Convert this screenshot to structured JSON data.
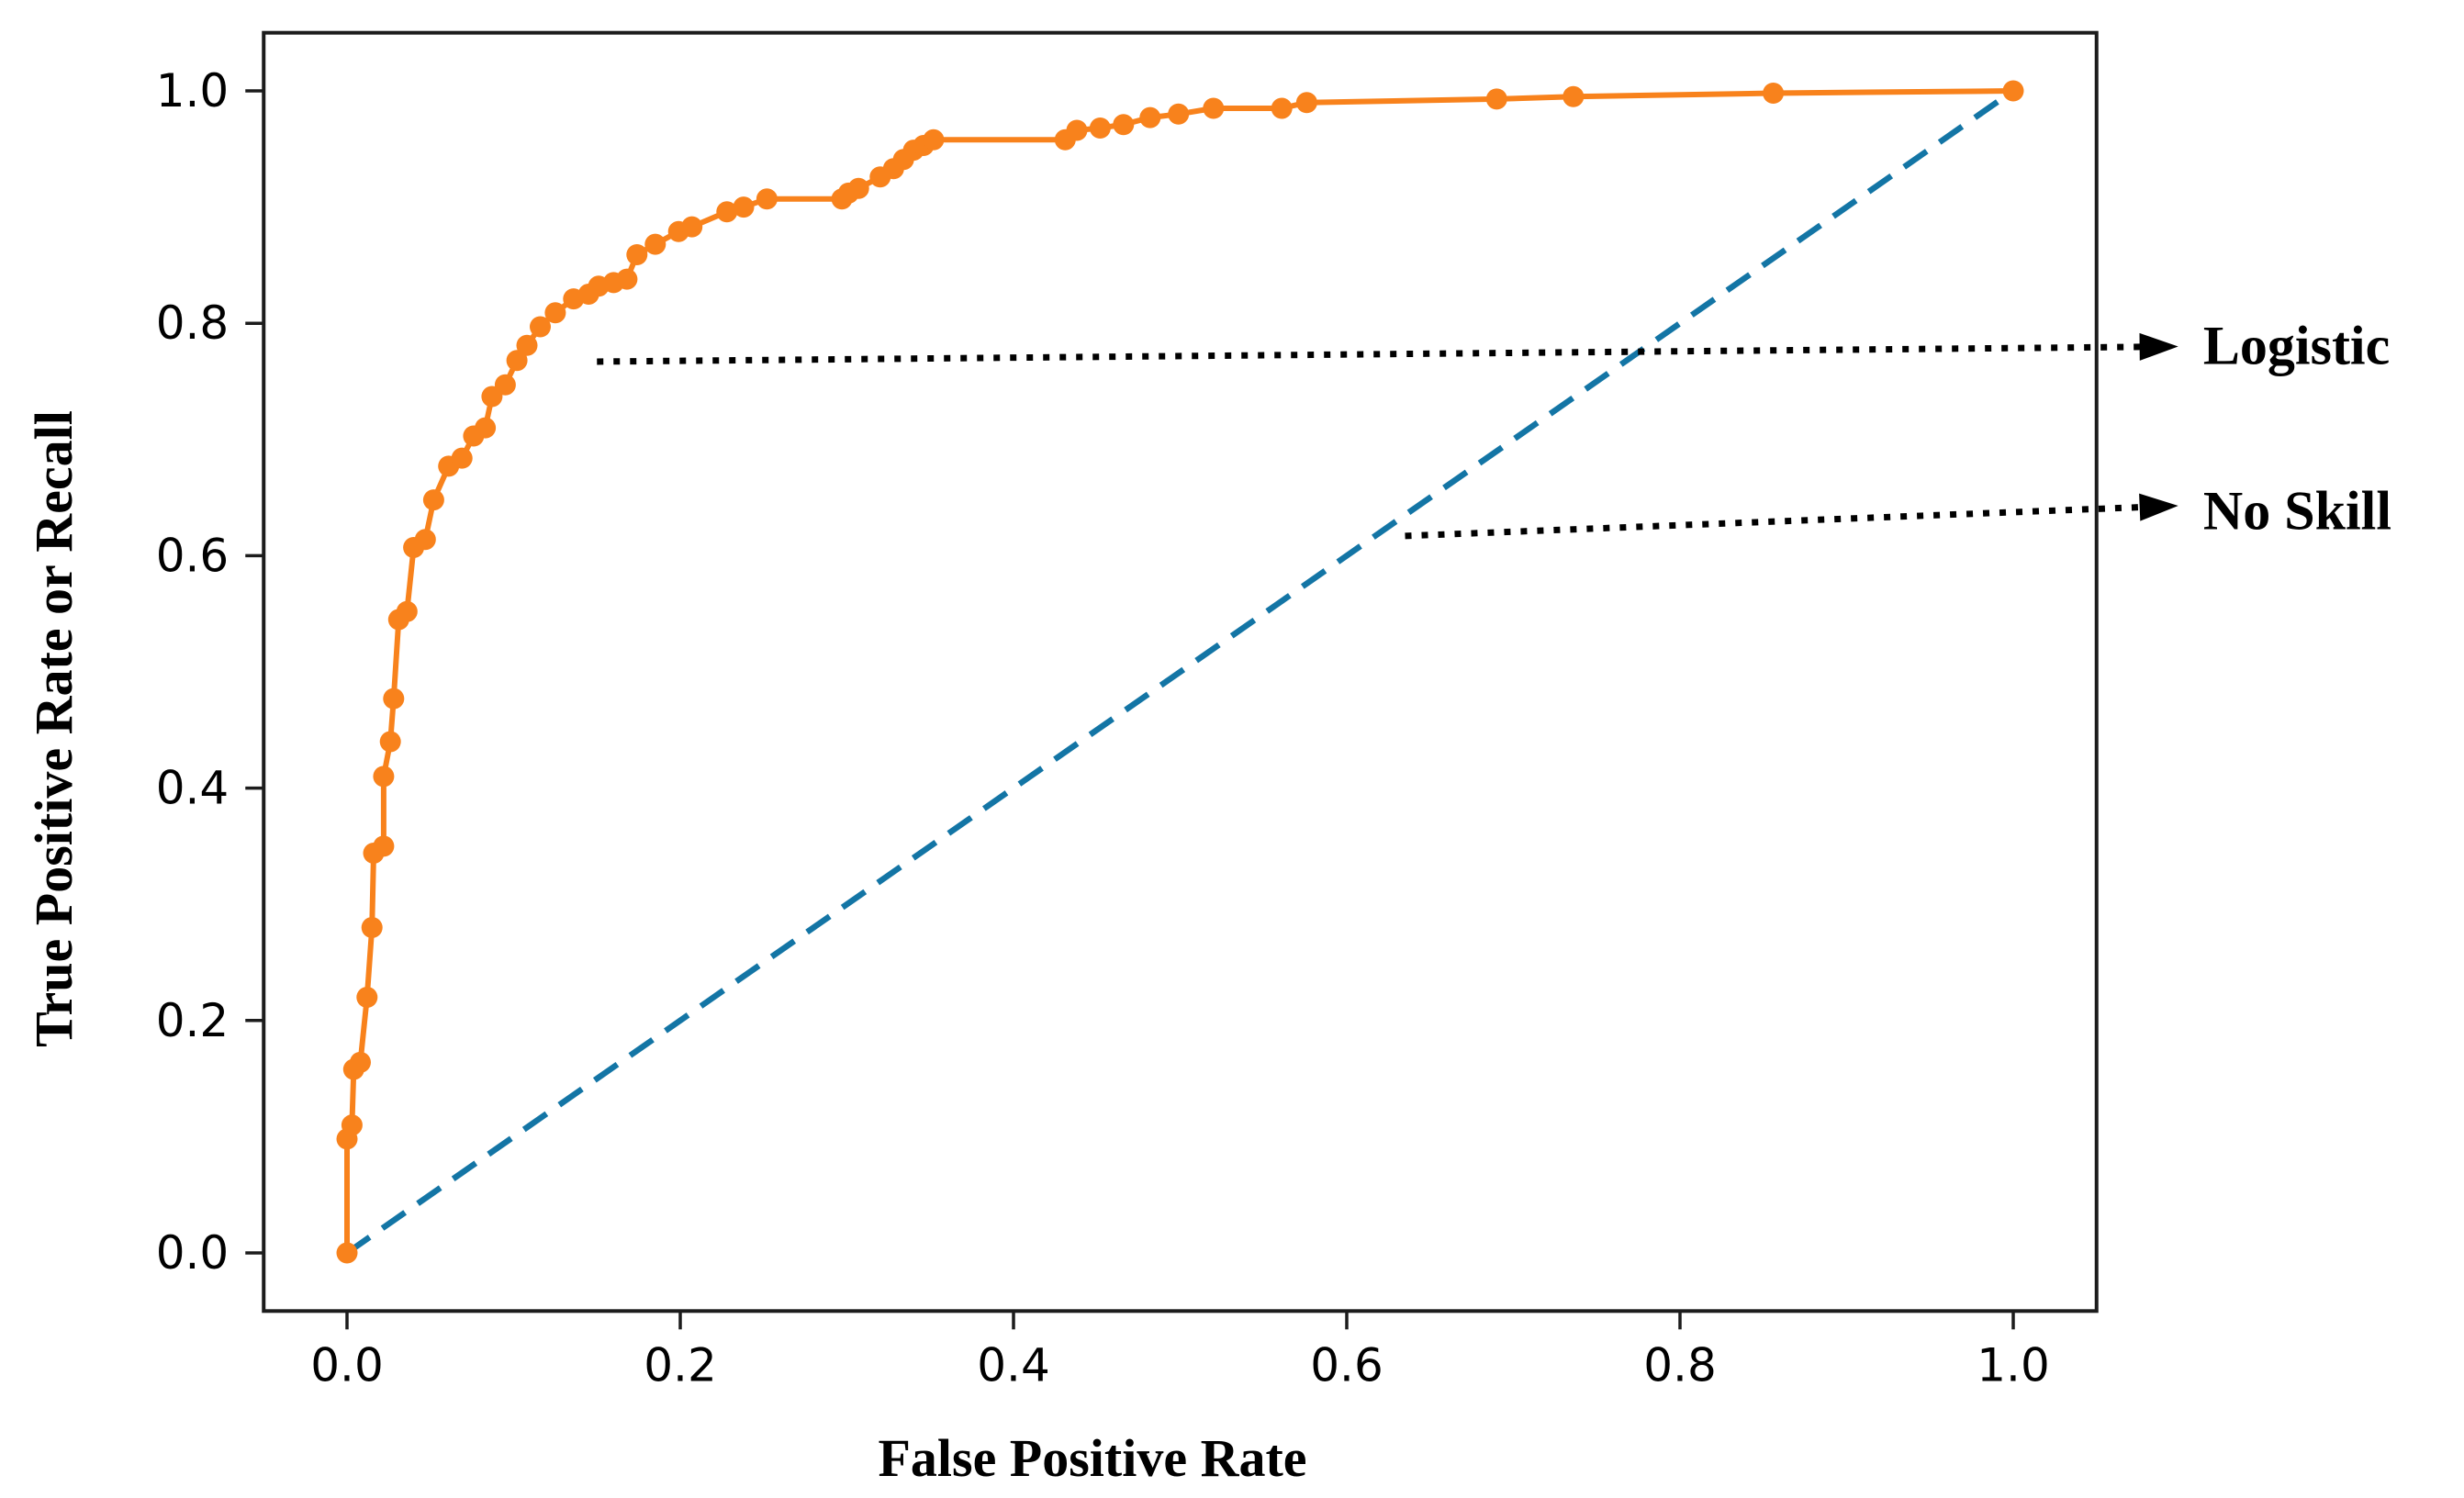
{
  "chart_data": {
    "type": "line",
    "title": "",
    "xlabel": "False Positive Rate",
    "ylabel": "True Positive Rate or Recall",
    "xlim": [
      -0.05,
      1.05
    ],
    "ylim": [
      -0.05,
      1.05
    ],
    "grid": false,
    "legend_position": "none",
    "x_tick_values": [
      0.0,
      0.2,
      0.4,
      0.6,
      0.8,
      1.0
    ],
    "x_tick_labels": [
      "0.0",
      "0.2",
      "0.4",
      "0.6",
      "0.8",
      "1.0"
    ],
    "y_tick_values": [
      0.0,
      0.2,
      0.4,
      0.6,
      0.8,
      1.0
    ],
    "y_tick_labels": [
      "0.0",
      "0.2",
      "0.4",
      "0.6",
      "0.8",
      "1.0"
    ],
    "axis_color": "#1c1c1c",
    "series": [
      {
        "name": "Logistic",
        "style": "solid",
        "marker": "circle",
        "color": "#f8821c",
        "points": [
          [
            0.0,
            0.0
          ],
          [
            0.0,
            0.098
          ],
          [
            0.003,
            0.11
          ],
          [
            0.004,
            0.158
          ],
          [
            0.008,
            0.164
          ],
          [
            0.012,
            0.22
          ],
          [
            0.015,
            0.28
          ],
          [
            0.016,
            0.344
          ],
          [
            0.022,
            0.35
          ],
          [
            0.022,
            0.41
          ],
          [
            0.026,
            0.44
          ],
          [
            0.028,
            0.477
          ],
          [
            0.031,
            0.545
          ],
          [
            0.036,
            0.552
          ],
          [
            0.04,
            0.607
          ],
          [
            0.047,
            0.614
          ],
          [
            0.052,
            0.648
          ],
          [
            0.061,
            0.677
          ],
          [
            0.069,
            0.684
          ],
          [
            0.076,
            0.703
          ],
          [
            0.083,
            0.71
          ],
          [
            0.087,
            0.737
          ],
          [
            0.095,
            0.747
          ],
          [
            0.102,
            0.768
          ],
          [
            0.108,
            0.781
          ],
          [
            0.116,
            0.797
          ],
          [
            0.125,
            0.809
          ],
          [
            0.136,
            0.821
          ],
          [
            0.145,
            0.825
          ],
          [
            0.151,
            0.832
          ],
          [
            0.16,
            0.835
          ],
          [
            0.168,
            0.838
          ],
          [
            0.174,
            0.859
          ],
          [
            0.185,
            0.868
          ],
          [
            0.199,
            0.879
          ],
          [
            0.207,
            0.883
          ],
          [
            0.228,
            0.896
          ],
          [
            0.238,
            0.9
          ],
          [
            0.252,
            0.907
          ],
          [
            0.297,
            0.907
          ],
          [
            0.301,
            0.912
          ],
          [
            0.307,
            0.916
          ],
          [
            0.32,
            0.926
          ],
          [
            0.328,
            0.933
          ],
          [
            0.334,
            0.941
          ],
          [
            0.34,
            0.949
          ],
          [
            0.346,
            0.953
          ],
          [
            0.352,
            0.958
          ],
          [
            0.431,
            0.958
          ],
          [
            0.438,
            0.966
          ],
          [
            0.452,
            0.968
          ],
          [
            0.466,
            0.971
          ],
          [
            0.482,
            0.977
          ],
          [
            0.499,
            0.98
          ],
          [
            0.52,
            0.985
          ],
          [
            0.561,
            0.985
          ],
          [
            0.576,
            0.99
          ],
          [
            0.69,
            0.993
          ],
          [
            0.736,
            0.995
          ],
          [
            0.856,
            0.998
          ],
          [
            1.0,
            1.0
          ]
        ]
      },
      {
        "name": "No Skill",
        "style": "dashed",
        "marker": "none",
        "color": "#1375a5",
        "points": [
          [
            0.0,
            0.0
          ],
          [
            1.0,
            1.0
          ]
        ]
      }
    ],
    "annotations": [
      {
        "label": "Logistic",
        "color": "#000000",
        "line_style": "dotted",
        "arrow_from": [
          0.15,
          0.767
        ],
        "arrow_to": [
          1.099,
          0.78
        ],
        "text_pos": [
          1.114,
          0.765
        ]
      },
      {
        "label": "No Skill",
        "color": "#000000",
        "line_style": "dotted",
        "arrow_from": [
          0.635,
          0.617
        ],
        "arrow_to": [
          1.099,
          0.643
        ],
        "text_pos": [
          1.114,
          0.623
        ]
      }
    ]
  }
}
